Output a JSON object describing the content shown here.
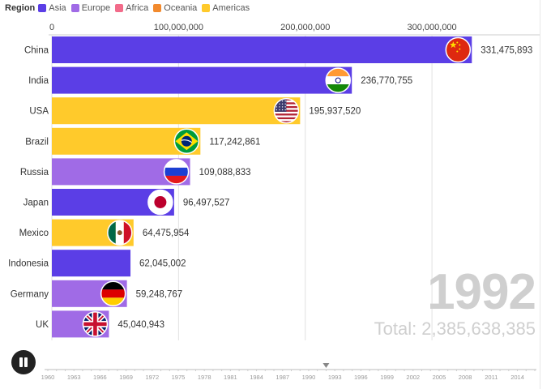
{
  "legend": {
    "title": "Region",
    "items": [
      {
        "label": "Asia",
        "color": "#5b3ee6"
      },
      {
        "label": "Europe",
        "color": "#a06be6"
      },
      {
        "label": "Africa",
        "color": "#f26b8a"
      },
      {
        "label": "Oceania",
        "color": "#f28a2e"
      },
      {
        "label": "Americas",
        "color": "#ffca2b"
      }
    ]
  },
  "chart_data": {
    "type": "bar",
    "orientation": "horizontal",
    "x_ticks": [
      "0",
      "100,000,000",
      "200,000,000",
      "300,000,000"
    ],
    "x_tick_values": [
      0,
      100000000,
      200000000,
      300000000
    ],
    "xlim": [
      0,
      330000000
    ],
    "grid": true,
    "legend_placement": "top-left",
    "categories": [
      "China",
      "India",
      "USA",
      "Brazil",
      "Russia",
      "Japan",
      "Mexico",
      "Indonesia",
      "Germany",
      "UK"
    ],
    "values": [
      331475893,
      236770755,
      195937520,
      117242861,
      109088833,
      96497527,
      64475954,
      62045002,
      59248767,
      45040943
    ],
    "value_labels": [
      "331,475,893",
      "236,770,755",
      "195,937,520",
      "117,242,861",
      "109,088,833",
      "96,497,527",
      "64,475,954",
      "62,045,002",
      "59,248,767",
      "45,040,943"
    ],
    "regions": [
      "Asia",
      "Asia",
      "Americas",
      "Americas",
      "Europe",
      "Asia",
      "Americas",
      "Asia",
      "Europe",
      "Europe"
    ],
    "flag_icons": [
      "china-flag-icon",
      "india-flag-icon",
      "usa-flag-icon",
      "brazil-flag-icon",
      "russia-flag-icon",
      "japan-flag-icon",
      "mexico-flag-icon",
      "",
      "germany-flag-icon",
      "uk-flag-icon"
    ]
  },
  "year": "1992",
  "total_label": "Total: 2,385,638,385",
  "timeline": {
    "years": [
      "1960",
      "1963",
      "1966",
      "1969",
      "1972",
      "1975",
      "1978",
      "1981",
      "1984",
      "1987",
      "1990",
      "1993",
      "1996",
      "1999",
      "2002",
      "2005",
      "2008",
      "2011",
      "2014"
    ],
    "start_year": 1960,
    "end_year": 2016,
    "current_year": 1992
  }
}
